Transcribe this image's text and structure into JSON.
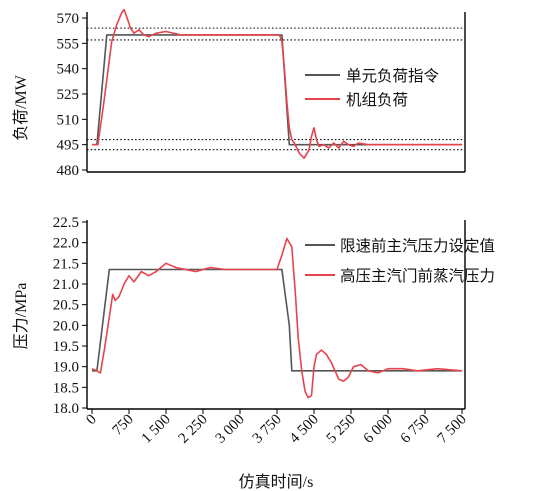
{
  "chart_data": [
    {
      "type": "line",
      "ylabel": "负荷/MW",
      "xlim": [
        0,
        7500
      ],
      "ylim": [
        480,
        570
      ],
      "yticks": [
        480,
        495,
        510,
        525,
        540,
        555,
        570
      ],
      "reference_lines": [
        498,
        492,
        557,
        564
      ],
      "legend": {
        "placement": "right"
      },
      "series": [
        {
          "name": "单元负荷指令",
          "color": "#555555",
          "x": [
            0,
            100,
            300,
            600,
            3700,
            3850,
            4000,
            7500
          ],
          "y": [
            495,
            495,
            560,
            560,
            560,
            560,
            495,
            495
          ]
        },
        {
          "name": "机组负荷",
          "color": "#e8434b",
          "x": [
            0,
            120,
            250,
            400,
            500,
            600,
            650,
            700,
            780,
            850,
            950,
            1050,
            1150,
            1300,
            1500,
            1800,
            2200,
            2600,
            3000,
            3400,
            3700,
            3800,
            3850,
            3900,
            3950,
            4000,
            4050,
            4100,
            4200,
            4300,
            4400,
            4450,
            4500,
            4550,
            4600,
            4700,
            4800,
            4900,
            5000,
            5100,
            5200,
            5300,
            5400,
            5600,
            6000,
            6500,
            7000,
            7500
          ],
          "y": [
            495,
            495,
            522,
            556,
            566,
            573,
            575,
            571,
            564,
            561,
            563,
            560,
            559,
            561,
            562,
            560,
            560,
            560,
            560,
            560,
            560,
            560,
            556,
            540,
            520,
            505,
            498,
            496,
            490,
            487,
            492,
            500,
            505,
            498,
            494,
            495,
            493,
            496,
            493,
            497,
            495,
            494,
            496,
            495,
            495,
            495,
            495,
            495
          ]
        }
      ]
    },
    {
      "type": "line",
      "xlabel": "仿真时间/s",
      "ylabel": "压力/MPa",
      "xlim": [
        0,
        7500
      ],
      "ylim": [
        18.0,
        22.5
      ],
      "xticks": [
        "0",
        "750",
        "1 500",
        "2 250",
        "3 000",
        "3 750",
        "4 500",
        "5 250",
        "6 000",
        "6 750",
        "7 500"
      ],
      "yticks": [
        "18.0",
        "18.5",
        "19.0",
        "19.5",
        "20.0",
        "20.5",
        "21.0",
        "21.5",
        "22.0",
        "22.5"
      ],
      "legend": {
        "placement": "right"
      },
      "series": [
        {
          "name": "限速前主汽压力设定值",
          "color": "#555555",
          "x": [
            0,
            100,
            350,
            3750,
            3850,
            4000,
            4050,
            7500
          ],
          "y": [
            18.9,
            18.9,
            21.35,
            21.35,
            21.35,
            20.0,
            18.9,
            18.9
          ]
        },
        {
          "name": "高压主汽门前蒸汽压力",
          "color": "#e8434b",
          "x": [
            0,
            100,
            170,
            250,
            350,
            420,
            470,
            550,
            650,
            750,
            850,
            1000,
            1150,
            1300,
            1500,
            1700,
            1900,
            2100,
            2400,
            2700,
            3000,
            3300,
            3600,
            3750,
            3850,
            3950,
            4050,
            4120,
            4180,
            4250,
            4320,
            4380,
            4450,
            4500,
            4550,
            4650,
            4750,
            4850,
            5000,
            5100,
            5200,
            5300,
            5450,
            5600,
            5800,
            6000,
            6300,
            6600,
            7000,
            7500
          ],
          "y": [
            18.95,
            18.9,
            18.85,
            19.4,
            20.2,
            20.75,
            20.6,
            20.7,
            21.0,
            21.2,
            21.05,
            21.3,
            21.2,
            21.3,
            21.5,
            21.4,
            21.35,
            21.3,
            21.4,
            21.35,
            21.35,
            21.35,
            21.35,
            21.35,
            21.7,
            22.1,
            21.9,
            20.8,
            19.7,
            18.9,
            18.4,
            18.25,
            18.3,
            19.0,
            19.3,
            19.4,
            19.3,
            19.1,
            18.7,
            18.65,
            18.75,
            19.0,
            19.05,
            18.9,
            18.85,
            18.95,
            18.95,
            18.9,
            18.95,
            18.9
          ]
        }
      ]
    }
  ]
}
